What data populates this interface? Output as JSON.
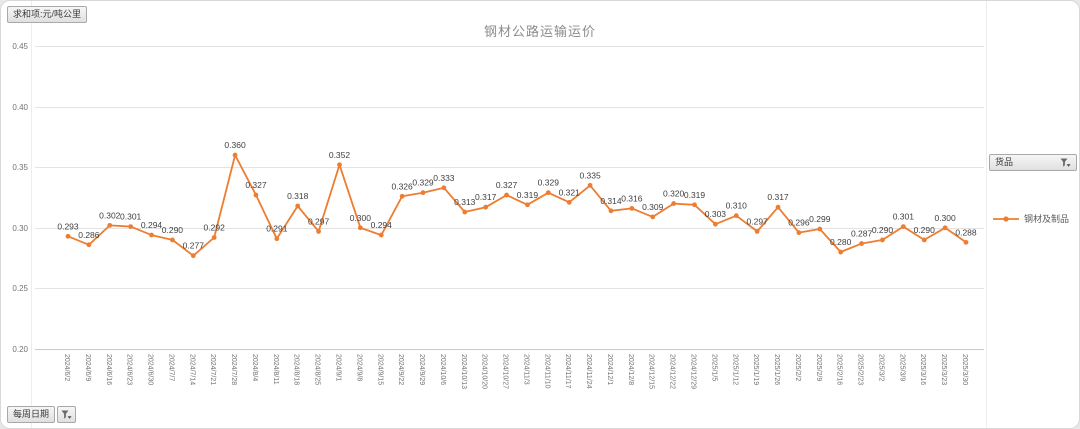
{
  "page": {
    "outer_background": "#e8e8e8",
    "card_background": "#ffffff"
  },
  "title": "钢材公路运输运价",
  "pivot_buttons": {
    "value_field_label": "求和项:元/吨公里",
    "axis_field_label": "每周日期",
    "legend_field_label": "货品"
  },
  "legend": {
    "series_label": "钢材及制品"
  },
  "icons": {
    "field_filter": "funnel-filter-icon",
    "legend_marker": "orange-line-with-dot"
  },
  "colors": {
    "series": "#ED7D31",
    "gridline": "#e3e3e3",
    "axis_line": "#c9c9c9",
    "axis_text": "#737373",
    "data_label": "#404040",
    "title_text": "#8c8c8c"
  },
  "chart_data": {
    "type": "line",
    "title": "钢材公路运输运价",
    "xlabel": "",
    "ylabel": "",
    "ylim": [
      0.2,
      0.45
    ],
    "ytick_labels": [
      "0.45",
      "0.40",
      "0.35",
      "0.30",
      "0.25",
      "0.20"
    ],
    "grid": "horizontal",
    "legend_position": "right",
    "data_labels": "each point labeled, 3 decimals",
    "categories": [
      "2024/6/2",
      "2024/6/9",
      "2024/6/16",
      "2024/6/23",
      "2024/6/30",
      "2024/7/7",
      "2024/7/14",
      "2024/7/21",
      "2024/7/28",
      "2024/8/4",
      "2024/8/11",
      "2024/8/18",
      "2024/8/25",
      "2024/9/1",
      "2024/9/8",
      "2024/9/15",
      "2024/9/22",
      "2024/9/29",
      "2024/10/6",
      "2024/10/13",
      "2024/10/20",
      "2024/10/27",
      "2024/11/3",
      "2024/11/10",
      "2024/11/17",
      "2024/11/24",
      "2024/12/1",
      "2024/12/8",
      "2024/12/15",
      "2024/12/22",
      "2024/12/29",
      "2025/1/5",
      "2025/1/12",
      "2025/1/19",
      "2025/1/26",
      "2025/2/2",
      "2025/2/9",
      "2025/2/16",
      "2025/2/23",
      "2025/3/2",
      "2025/3/9",
      "2025/3/16",
      "2025/3/23",
      "2025/3/30"
    ],
    "series": [
      {
        "name": "钢材及制品",
        "color": "#ED7D31",
        "values": [
          0.293,
          0.286,
          0.302,
          0.301,
          0.294,
          0.29,
          0.277,
          0.292,
          0.36,
          0.327,
          0.291,
          0.318,
          0.297,
          0.352,
          0.3,
          0.294,
          0.326,
          0.329,
          0.333,
          0.313,
          0.317,
          0.327,
          0.319,
          0.329,
          0.321,
          0.335,
          0.314,
          0.316,
          0.309,
          0.32,
          0.319,
          0.303,
          0.31,
          0.297,
          0.317,
          0.296,
          0.299,
          0.28,
          0.287,
          0.29,
          0.301,
          0.29,
          0.3,
          0.288
        ]
      }
    ]
  }
}
